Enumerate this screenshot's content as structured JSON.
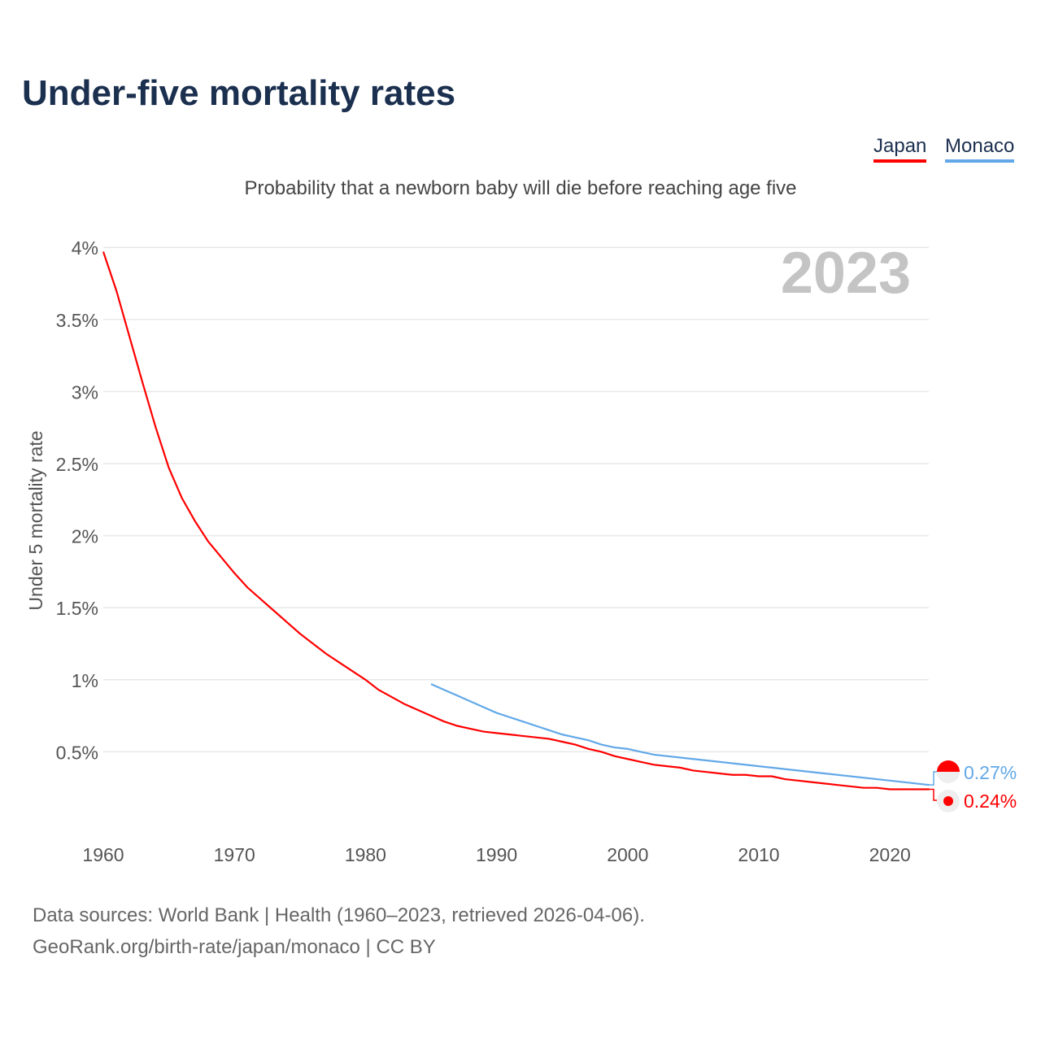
{
  "chart_data": {
    "type": "line",
    "title": "Under-five mortality rates",
    "subtitle": "Probability that a newborn baby will die before reaching age five",
    "ylabel": "Under 5 mortality rate",
    "xlabel": "",
    "year_label": "2023",
    "xlim": [
      1960,
      2023
    ],
    "ylim": [
      0,
      4
    ],
    "xticks": [
      1960,
      1970,
      1980,
      1990,
      2000,
      2010,
      2020
    ],
    "yticks": [
      {
        "v": 0.5,
        "l": "0.5%"
      },
      {
        "v": 1,
        "l": "1%"
      },
      {
        "v": 1.5,
        "l": "1.5%"
      },
      {
        "v": 2,
        "l": "2%"
      },
      {
        "v": 2.5,
        "l": "2.5%"
      },
      {
        "v": 3,
        "l": "3%"
      },
      {
        "v": 3.5,
        "l": "3.5%"
      },
      {
        "v": 4,
        "l": "4%"
      }
    ],
    "grid": true,
    "legend_placement": "top-right",
    "series": [
      {
        "name": "Japan",
        "color": "#ff0000",
        "end_label": "0.24%",
        "points": [
          [
            1960,
            3.97
          ],
          [
            1961,
            3.7
          ],
          [
            1962,
            3.38
          ],
          [
            1963,
            3.06
          ],
          [
            1964,
            2.75
          ],
          [
            1965,
            2.47
          ],
          [
            1966,
            2.26
          ],
          [
            1967,
            2.1
          ],
          [
            1968,
            1.96
          ],
          [
            1969,
            1.85
          ],
          [
            1970,
            1.74
          ],
          [
            1971,
            1.64
          ],
          [
            1972,
            1.56
          ],
          [
            1973,
            1.48
          ],
          [
            1974,
            1.4
          ],
          [
            1975,
            1.32
          ],
          [
            1976,
            1.25
          ],
          [
            1977,
            1.18
          ],
          [
            1978,
            1.12
          ],
          [
            1979,
            1.06
          ],
          [
            1980,
            1.0
          ],
          [
            1981,
            0.93
          ],
          [
            1982,
            0.88
          ],
          [
            1983,
            0.83
          ],
          [
            1984,
            0.79
          ],
          [
            1985,
            0.75
          ],
          [
            1986,
            0.71
          ],
          [
            1987,
            0.68
          ],
          [
            1988,
            0.66
          ],
          [
            1989,
            0.64
          ],
          [
            1990,
            0.63
          ],
          [
            1991,
            0.62
          ],
          [
            1992,
            0.61
          ],
          [
            1993,
            0.6
          ],
          [
            1994,
            0.59
          ],
          [
            1995,
            0.57
          ],
          [
            1996,
            0.55
          ],
          [
            1997,
            0.52
          ],
          [
            1998,
            0.5
          ],
          [
            1999,
            0.47
          ],
          [
            2000,
            0.45
          ],
          [
            2001,
            0.43
          ],
          [
            2002,
            0.41
          ],
          [
            2003,
            0.4
          ],
          [
            2004,
            0.39
          ],
          [
            2005,
            0.37
          ],
          [
            2006,
            0.36
          ],
          [
            2007,
            0.35
          ],
          [
            2008,
            0.34
          ],
          [
            2009,
            0.34
          ],
          [
            2010,
            0.33
          ],
          [
            2011,
            0.33
          ],
          [
            2012,
            0.31
          ],
          [
            2013,
            0.3
          ],
          [
            2014,
            0.29
          ],
          [
            2015,
            0.28
          ],
          [
            2016,
            0.27
          ],
          [
            2017,
            0.26
          ],
          [
            2018,
            0.25
          ],
          [
            2019,
            0.25
          ],
          [
            2020,
            0.24
          ],
          [
            2021,
            0.24
          ],
          [
            2022,
            0.24
          ],
          [
            2023,
            0.24
          ]
        ]
      },
      {
        "name": "Monaco",
        "color": "#62a8e8",
        "end_label": "0.27%",
        "points": [
          [
            1985,
            0.97
          ],
          [
            1986,
            0.93
          ],
          [
            1987,
            0.89
          ],
          [
            1988,
            0.85
          ],
          [
            1989,
            0.81
          ],
          [
            1990,
            0.77
          ],
          [
            1991,
            0.74
          ],
          [
            1992,
            0.71
          ],
          [
            1993,
            0.68
          ],
          [
            1994,
            0.65
          ],
          [
            1995,
            0.62
          ],
          [
            1996,
            0.6
          ],
          [
            1997,
            0.58
          ],
          [
            1998,
            0.55
          ],
          [
            1999,
            0.53
          ],
          [
            2000,
            0.52
          ],
          [
            2001,
            0.5
          ],
          [
            2002,
            0.48
          ],
          [
            2005,
            0.45
          ],
          [
            2010,
            0.4
          ],
          [
            2015,
            0.35
          ],
          [
            2020,
            0.3
          ],
          [
            2023,
            0.27
          ]
        ]
      }
    ]
  },
  "source_line1": "Data sources: World Bank | Health (1960–2023, retrieved 2026-04-06).",
  "source_line2": "GeoRank.org/birth-rate/japan/monaco | CC BY"
}
